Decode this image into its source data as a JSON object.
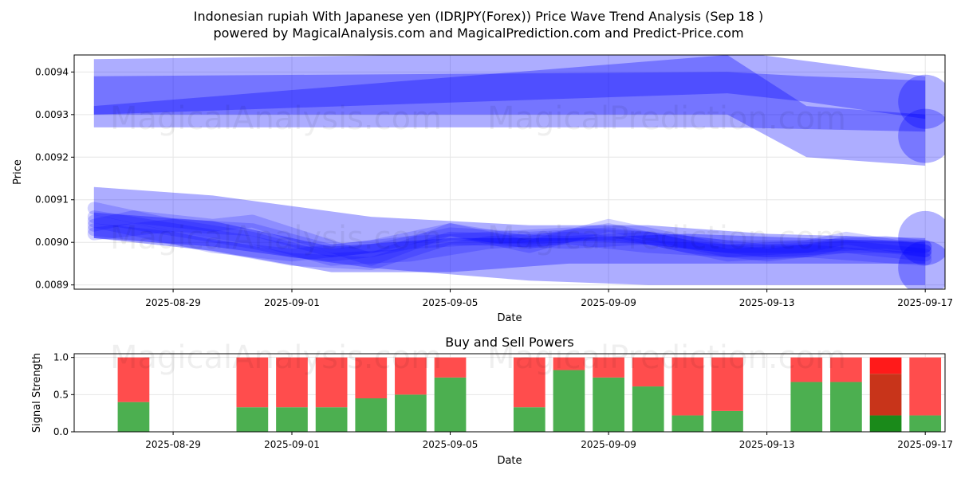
{
  "header": {
    "title_line1": "Indonesian rupiah With Japanese yen (IDRJPY(Forex)) Price Wave Trend Analysis (Sep 18 )",
    "title_line2": "powered by MagicalAnalysis.com and MagicalPrediction.com and Predict-Price.com"
  },
  "watermarks": [
    "MagicalAnalysis.com",
    "MagicalPrediction.com"
  ],
  "chart_data": [
    {
      "type": "line",
      "title": "",
      "xlabel": "Date",
      "ylabel": "Price",
      "xlim": [
        "2025-08-26T12:00",
        "2025-09-17T12:00"
      ],
      "ylim": [
        0.00889,
        0.00944
      ],
      "x_ticks": [
        "2025-08-29",
        "2025-09-01",
        "2025-09-05",
        "2025-09-09",
        "2025-09-13",
        "2025-09-17"
      ],
      "y_ticks": [
        "0.0089",
        "0.0090",
        "0.0091",
        "0.0092",
        "0.0093",
        "0.0094"
      ],
      "grid": true,
      "series_color": "#0000ff",
      "bands": [
        {
          "x": [
            "2025-08-27",
            "2025-09-12",
            "2025-09-17"
          ],
          "lo": [
            0.00927,
            0.00927,
            0.00926
          ],
          "hi": [
            0.00943,
            0.00945,
            0.00939
          ]
        },
        {
          "x": [
            "2025-08-27",
            "2025-09-12",
            "2025-09-14",
            "2025-09-17"
          ],
          "lo": [
            0.0093,
            0.00935,
            0.00933,
            0.00929
          ],
          "hi": [
            0.00939,
            0.0094,
            0.00939,
            0.00938
          ]
        },
        {
          "x": [
            "2025-08-27",
            "2025-09-12",
            "2025-09-14",
            "2025-09-17"
          ],
          "lo": [
            0.0093,
            0.0093,
            0.0092,
            0.00918
          ],
          "hi": [
            0.00932,
            0.00944,
            0.00932,
            0.0093
          ]
        },
        {
          "x": [
            "2025-08-27",
            "2025-08-30",
            "2025-09-03",
            "2025-09-07",
            "2025-09-10",
            "2025-09-13",
            "2025-09-17"
          ],
          "lo": [
            0.00901,
            0.00899,
            0.00894,
            0.00891,
            0.0089,
            0.0089,
            0.0089
          ],
          "hi": [
            0.00913,
            0.00911,
            0.00906,
            0.00904,
            0.00904,
            0.00902,
            0.00901
          ]
        },
        {
          "x": [
            "2025-08-27",
            "2025-08-30",
            "2025-09-02",
            "2025-09-05",
            "2025-09-08",
            "2025-09-11",
            "2025-09-14",
            "2025-09-17"
          ],
          "lo": [
            0.00901,
            0.00898,
            0.00893,
            0.00893,
            0.00895,
            0.00895,
            0.00895,
            0.00895
          ],
          "hi": [
            0.00907,
            0.00905,
            0.00899,
            0.00901,
            0.00901,
            0.00902,
            0.00901,
            0.009
          ]
        }
      ],
      "series": [
        {
          "x": [
            "2025-08-27",
            "2025-08-29",
            "2025-08-31",
            "2025-09-01",
            "2025-09-02",
            "2025-09-03",
            "2025-09-04",
            "2025-09-05",
            "2025-09-07",
            "2025-09-09",
            "2025-09-11",
            "2025-09-13",
            "2025-09-15",
            "2025-09-17"
          ],
          "values": [
            0.00906,
            0.00903,
            0.009,
            0.00898,
            0.00897,
            0.00898,
            0.009,
            0.00902,
            0.00901,
            0.00902,
            0.009,
            0.00898,
            0.00899,
            0.00899
          ]
        },
        {
          "x": [
            "2025-08-27",
            "2025-08-28",
            "2025-08-30",
            "2025-08-31",
            "2025-09-02",
            "2025-09-03",
            "2025-09-05",
            "2025-09-07",
            "2025-09-09",
            "2025-09-10",
            "2025-09-12",
            "2025-09-14",
            "2025-09-15",
            "2025-09-17"
          ],
          "values": [
            0.00904,
            0.00906,
            0.00904,
            0.00905,
            0.00899,
            0.00896,
            0.00903,
            0.00899,
            0.00904,
            0.00902,
            0.00898,
            0.00899,
            0.00901,
            0.00898
          ]
        },
        {
          "x": [
            "2025-08-27",
            "2025-08-29",
            "2025-09-01",
            "2025-09-03",
            "2025-09-05",
            "2025-09-08",
            "2025-09-10",
            "2025-09-12",
            "2025-09-14",
            "2025-09-17"
          ],
          "values": [
            0.00903,
            0.00901,
            0.00896,
            0.00895,
            0.00901,
            0.009,
            0.00901,
            0.00897,
            0.00898,
            0.00896
          ]
        },
        {
          "x": [
            "2025-08-27",
            "2025-08-29",
            "2025-08-31",
            "2025-09-02",
            "2025-09-04",
            "2025-09-06",
            "2025-09-08",
            "2025-09-10",
            "2025-09-12",
            "2025-09-14",
            "2025-09-16",
            "2025-09-17"
          ],
          "values": [
            0.00908,
            0.00904,
            0.00903,
            0.00898,
            0.009,
            0.00901,
            0.00902,
            0.00901,
            0.00899,
            0.00899,
            0.009,
            0.00899
          ]
        },
        {
          "x": [
            "2025-08-27",
            "2025-08-30",
            "2025-09-01",
            "2025-09-03",
            "2025-09-05",
            "2025-09-07",
            "2025-09-09",
            "2025-09-11",
            "2025-09-13",
            "2025-09-15",
            "2025-09-17"
          ],
          "values": [
            0.00905,
            0.00899,
            0.00897,
            0.00899,
            0.00903,
            0.009,
            0.00903,
            0.00899,
            0.00897,
            0.00899,
            0.00897
          ]
        },
        {
          "x": [
            "2025-08-27",
            "2025-08-29",
            "2025-08-31",
            "2025-09-02",
            "2025-09-04",
            "2025-09-06",
            "2025-09-08",
            "2025-09-10",
            "2025-09-12",
            "2025-09-14",
            "2025-09-15",
            "2025-09-17"
          ],
          "values": [
            0.00902,
            0.00904,
            0.00901,
            0.00896,
            0.00897,
            0.009,
            0.00901,
            0.00899,
            0.00898,
            0.00898,
            0.009,
            0.00898
          ]
        }
      ],
      "end_blobs": [
        {
          "x": "2025-09-17",
          "y": 0.00933
        },
        {
          "x": "2025-09-17",
          "y": 0.00925
        },
        {
          "x": "2025-09-17",
          "y": 0.00901
        },
        {
          "x": "2025-09-17",
          "y": 0.00894
        }
      ]
    },
    {
      "type": "bar",
      "title": "Buy and Sell Powers",
      "xlabel": "Date",
      "ylabel": "Signal Strength",
      "xlim": [
        "2025-08-26T12:00",
        "2025-09-17T12:00"
      ],
      "ylim": [
        0,
        1.05
      ],
      "x_ticks": [
        "2025-08-29",
        "2025-09-01",
        "2025-09-05",
        "2025-09-09",
        "2025-09-13",
        "2025-09-17"
      ],
      "y_ticks": [
        "0.0",
        "0.5",
        "1.0"
      ],
      "grid": true,
      "colors": {
        "buy": "#4caf50",
        "sell": "#ff4d4d",
        "buy_strong": "#1a8a1a",
        "sell_strong": "#ff1a1a",
        "overlap": "#c8341a"
      },
      "series": [
        {
          "name": "Buy",
          "x": [
            "2025-08-28",
            "2025-08-31",
            "2025-09-01",
            "2025-09-02",
            "2025-09-03",
            "2025-09-04",
            "2025-09-05",
            "2025-09-07",
            "2025-09-08",
            "2025-09-09",
            "2025-09-10",
            "2025-09-11",
            "2025-09-12",
            "2025-09-14",
            "2025-09-15",
            "2025-09-16",
            "2025-09-17"
          ],
          "values": [
            0.4,
            0.33,
            0.33,
            0.33,
            0.45,
            0.5,
            0.73,
            0.33,
            0.83,
            0.73,
            0.61,
            0.22,
            0.28,
            0.67,
            0.67,
            0.22,
            0.22
          ]
        },
        {
          "name": "Sell",
          "x": [
            "2025-08-28",
            "2025-08-31",
            "2025-09-01",
            "2025-09-02",
            "2025-09-03",
            "2025-09-04",
            "2025-09-05",
            "2025-09-07",
            "2025-09-08",
            "2025-09-09",
            "2025-09-10",
            "2025-09-11",
            "2025-09-12",
            "2025-09-14",
            "2025-09-15",
            "2025-09-16",
            "2025-09-17"
          ],
          "values": [
            0.6,
            0.67,
            0.67,
            0.67,
            0.55,
            0.5,
            0.27,
            0.67,
            0.17,
            0.27,
            0.39,
            0.78,
            0.72,
            0.33,
            0.33,
            0.78,
            0.78
          ]
        }
      ],
      "highlight": {
        "x": "2025-09-16",
        "strong_sell_from": 0.78
      }
    }
  ]
}
